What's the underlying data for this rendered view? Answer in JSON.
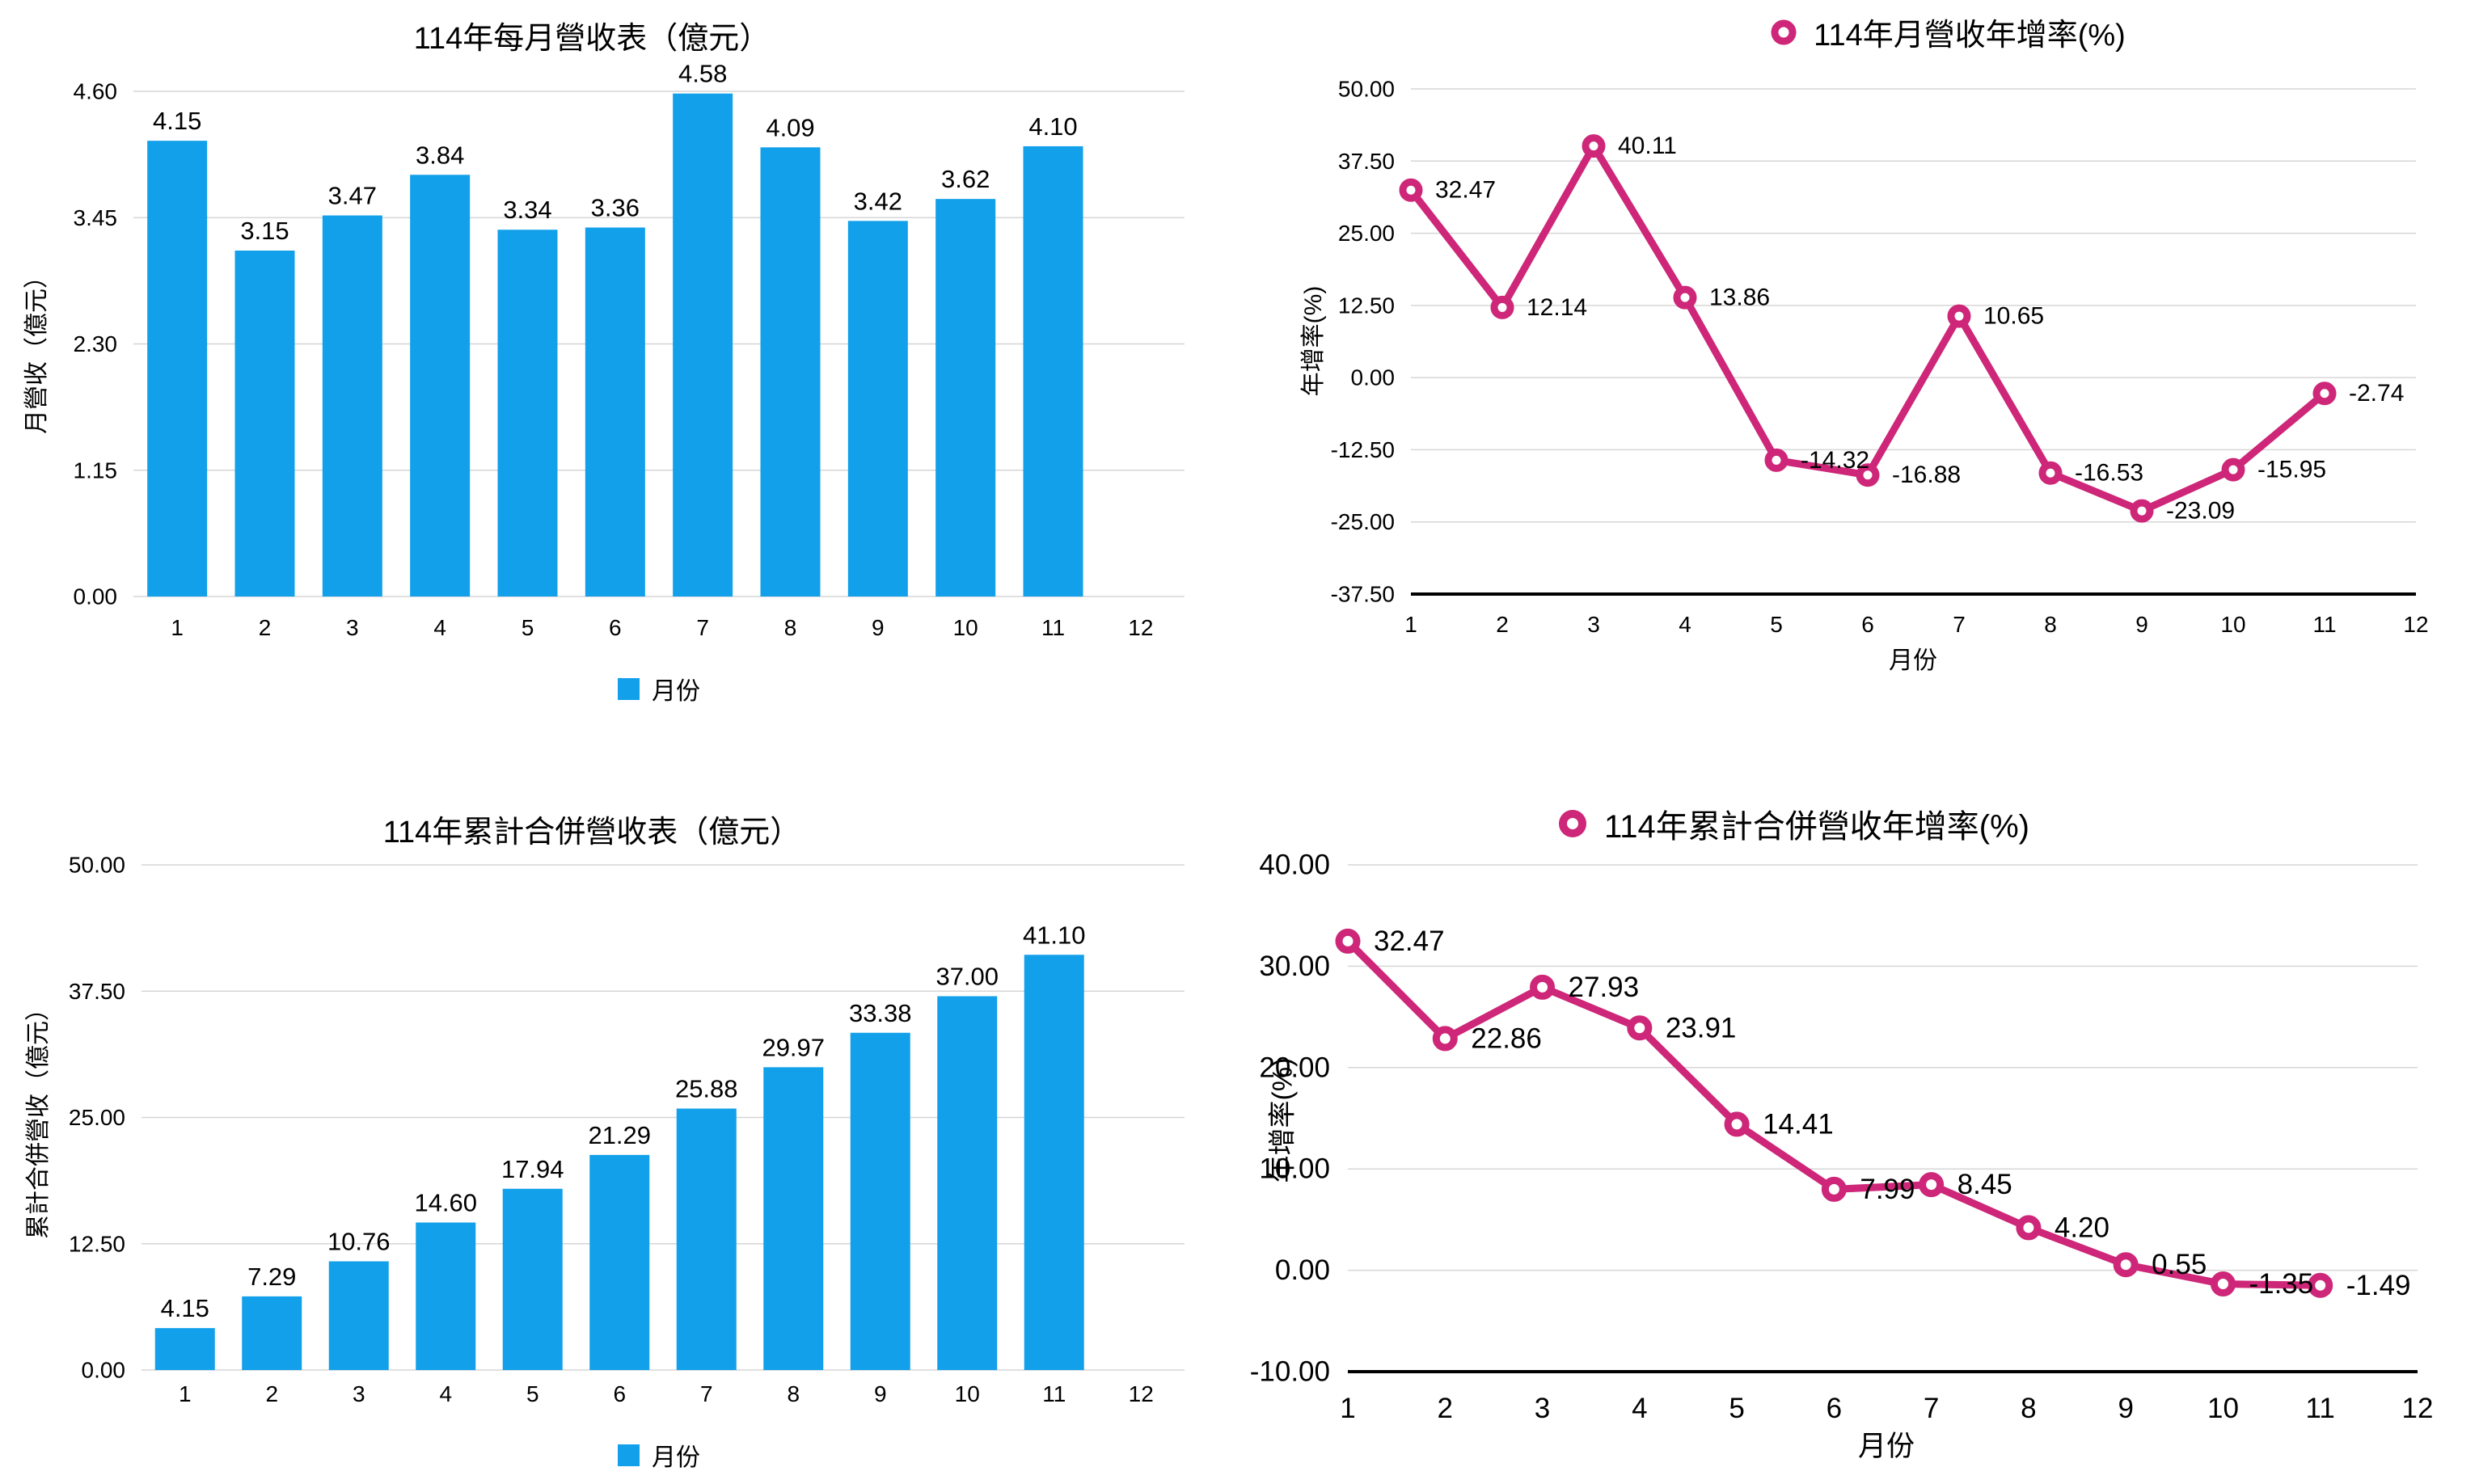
{
  "colors": {
    "bar_blue": "#12A0EA",
    "line_magenta": "#CE2678",
    "gridline": "#D6D6D6",
    "axis_black": "#000000"
  },
  "chart_data": [
    {
      "id": "monthly-revenue",
      "type": "bar",
      "title": "114年每月營收表（億元）",
      "ylabel": "月營收（億元）",
      "legend_label": "月份",
      "categories": [
        1,
        2,
        3,
        4,
        5,
        6,
        7,
        8,
        9,
        10,
        11,
        12
      ],
      "values": [
        4.15,
        3.15,
        3.47,
        3.84,
        3.34,
        3.36,
        4.58,
        4.09,
        3.42,
        3.62,
        4.1
      ],
      "ylim": [
        0,
        4.6
      ],
      "yticks": [
        4.6,
        3.45,
        2.3,
        1.15,
        0.0
      ],
      "ytick_labels": [
        "4.60",
        "3.45",
        "2.30",
        "1.15",
        "0.00"
      ],
      "bar_color": "#12A0EA",
      "grid": true,
      "legend_position": "bottom"
    },
    {
      "id": "monthly-yoy",
      "type": "line",
      "legend_title": "114年月營收年增率(%)",
      "ylabel": "年增率(%)",
      "xlabel": "月份",
      "categories": [
        1,
        2,
        3,
        4,
        5,
        6,
        7,
        8,
        9,
        10,
        11,
        12
      ],
      "values": [
        32.47,
        12.14,
        40.11,
        13.86,
        -14.32,
        -16.88,
        10.65,
        -16.53,
        -23.09,
        -15.95,
        -2.74
      ],
      "ylim": [
        -37.5,
        50
      ],
      "yticks": [
        50,
        37.5,
        25,
        12.5,
        0,
        -12.5,
        -25,
        -37.5
      ],
      "ytick_labels": [
        "50.00",
        "37.50",
        "25.00",
        "12.50",
        "0.00",
        "-12.50",
        "-25.00",
        "-37.50"
      ],
      "line_color": "#CE2678",
      "marker": "ring",
      "grid": true,
      "legend_position": "top"
    },
    {
      "id": "cumulative-revenue",
      "type": "bar",
      "title": "114年累計合併營收表（億元）",
      "ylabel": "累計合併營收（億元）",
      "legend_label": "月份",
      "categories": [
        1,
        2,
        3,
        4,
        5,
        6,
        7,
        8,
        9,
        10,
        11,
        12
      ],
      "values": [
        4.15,
        7.29,
        10.76,
        14.6,
        17.94,
        21.29,
        25.88,
        29.97,
        33.38,
        37.0,
        41.1
      ],
      "ylim": [
        0,
        50
      ],
      "yticks": [
        50,
        37.5,
        25,
        12.5,
        0
      ],
      "ytick_labels": [
        "50.00",
        "37.50",
        "25.00",
        "12.50",
        "0.00"
      ],
      "bar_color": "#12A0EA",
      "grid": true,
      "legend_position": "bottom"
    },
    {
      "id": "cumulative-yoy",
      "type": "line",
      "legend_title": "114年累計合併營收年增率(%)",
      "ylabel": "年增率(%)",
      "xlabel": "月份",
      "categories": [
        1,
        2,
        3,
        4,
        5,
        6,
        7,
        8,
        9,
        10,
        11,
        12
      ],
      "values": [
        32.47,
        22.86,
        27.93,
        23.91,
        14.41,
        7.99,
        8.45,
        4.2,
        0.55,
        -1.35,
        -1.49
      ],
      "ylim": [
        -10,
        40
      ],
      "yticks": [
        40,
        30,
        20,
        10,
        0,
        -10
      ],
      "ytick_labels": [
        "40.00",
        "30.00",
        "20.00",
        "10.00",
        "0.00",
        "-10.00"
      ],
      "line_color": "#CE2678",
      "marker": "ring",
      "grid": true,
      "legend_position": "top"
    }
  ]
}
